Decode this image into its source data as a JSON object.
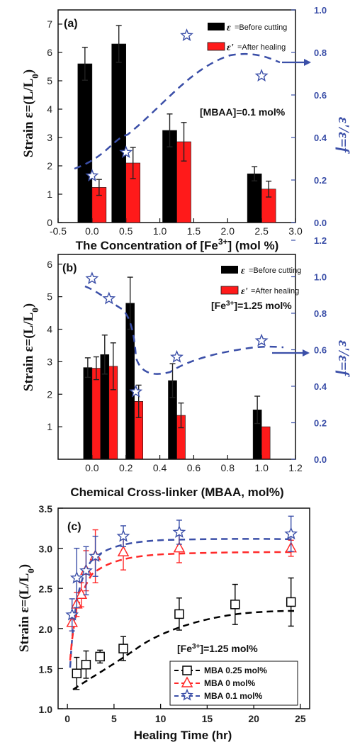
{
  "chart_data": [
    {
      "panel": "(a)",
      "type": "bar",
      "x": [
        0.0,
        0.5,
        1.25,
        2.5
      ],
      "series": [
        {
          "name": "=Before cutting",
          "symbol": "ε",
          "color": "#000000",
          "values": [
            5.6,
            6.3,
            3.25,
            1.72
          ],
          "errors": [
            0.58,
            0.65,
            0.58,
            0.25
          ]
        },
        {
          "name": "=After healing",
          "symbol": "ε'",
          "color": "#ff1a1a",
          "values": [
            1.24,
            2.1,
            2.85,
            1.18
          ],
          "errors": [
            0.28,
            0.55,
            0.68,
            0.28
          ]
        }
      ],
      "ratio_series": {
        "symbol": "ε'/ε=f",
        "color": "#3b4fa8",
        "x": [
          0.0,
          0.5,
          1.25,
          2.5
        ],
        "values": [
          0.22,
          0.33,
          0.88,
          0.69
        ]
      },
      "xlabel": "The Concentration of [Fe3+] (mol %)",
      "xlabel_main": "The Concentration of [Fe",
      "xlabel_sup": "3+",
      "xlabel_end": "] (mol %)",
      "ylabel": "Strain ε=(L/L0)",
      "ylabel_main": "Strain ε=(L/L",
      "ylabel_sub": "0",
      "ylabel_end": ")",
      "ylabel_right": "ε'/ε=f",
      "xlim": [
        -0.5,
        3.0
      ],
      "ylim": [
        0,
        7.5
      ],
      "y2lim": [
        0,
        1.0
      ],
      "xticks": [
        "-0.5",
        "0.0",
        "0.5",
        "1.0",
        "1.5",
        "2.0",
        "2.5",
        "3.0"
      ],
      "yticks": [
        "0",
        "1",
        "2",
        "3",
        "4",
        "5",
        "6",
        "7"
      ],
      "y2ticks": [
        "0.0",
        "0.2",
        "0.4",
        "0.6",
        "0.8",
        "1.0"
      ],
      "annotation": "[MBAA]=0.1 mol%",
      "legend": "top-right",
      "grid": false
    },
    {
      "panel": "(b)",
      "type": "bar",
      "x": [
        0.0,
        0.1,
        0.25,
        0.5,
        1.0
      ],
      "series": [
        {
          "name": "=Before cutting",
          "symbol": "ε",
          "color": "#000000",
          "values": [
            2.82,
            3.22,
            4.8,
            2.42,
            1.52
          ],
          "errors": [
            0.3,
            0.6,
            0.8,
            0.52,
            0.42
          ]
        },
        {
          "name": "=After healing",
          "symbol": "ε'",
          "color": "#ff1a1a",
          "values": [
            2.8,
            2.86,
            1.78,
            1.35,
            1.0
          ],
          "errors": [
            0.35,
            0.72,
            0.5,
            0.38,
            0.0
          ]
        }
      ],
      "ratio_series": {
        "symbol": "ε'/ε=f",
        "color": "#3b4fa8",
        "x": [
          0.0,
          0.1,
          0.25,
          0.5,
          1.0
        ],
        "values": [
          0.99,
          0.88,
          0.37,
          0.56,
          0.65
        ]
      },
      "xlabel": "Chemical Cross-linker (MBAA, mol%)",
      "ylabel": "Strain ε=(L/L0)",
      "ylabel_main": "Strain ε=(L/L",
      "ylabel_sub": "0",
      "ylabel_end": ")",
      "ylabel_right": "ε'/ε=f",
      "xlim": [
        -0.2,
        1.2
      ],
      "ylim": [
        0,
        6.3
      ],
      "y2lim": [
        0,
        1.2
      ],
      "xticks": [
        "0.0",
        "0.2",
        "0.4",
        "0.6",
        "0.8",
        "1.0",
        "1.2"
      ],
      "yticks": [
        "1",
        "2",
        "3",
        "4",
        "5",
        "6"
      ],
      "y2ticks": [
        "0.0",
        "0.2",
        "0.4",
        "0.6",
        "0.8",
        "1.0",
        "1.2"
      ],
      "annotation": "[Fe3+]=1.25 mol%",
      "annotation_main": "[Fe",
      "annotation_sup": "3+",
      "annotation_end": "]=1.25 mol%",
      "legend": "top-right",
      "grid": false
    },
    {
      "panel": "(c)",
      "type": "scatter",
      "series": [
        {
          "name": "MBA 0.25 mol%",
          "marker": "square",
          "color": "#000000",
          "x": [
            1,
            2,
            3.5,
            6,
            12,
            18,
            24
          ],
          "values": [
            1.44,
            1.55,
            1.65,
            1.75,
            2.18,
            2.3,
            2.33
          ],
          "errors": [
            0.2,
            0.17,
            0.08,
            0.15,
            0.2,
            0.25,
            0.3
          ]
        },
        {
          "name": "MBA 0 mol%",
          "marker": "triangle",
          "color": "#ff2a2a",
          "x": [
            0.5,
            1,
            1.5,
            2,
            3,
            6,
            12,
            24
          ],
          "values": [
            2.07,
            2.3,
            2.42,
            2.72,
            2.9,
            2.95,
            3.0,
            3.0
          ],
          "errors": [
            0.1,
            0.15,
            0.15,
            0.25,
            0.33,
            0.22,
            0.18,
            0.1
          ]
        },
        {
          "name": "MBA 0.1 mol%",
          "marker": "star",
          "color": "#3b4fa8",
          "x": [
            0.5,
            1,
            2,
            3,
            6,
            12,
            24
          ],
          "values": [
            2.17,
            2.63,
            2.72,
            2.9,
            3.15,
            3.2,
            3.18
          ],
          "errors": [
            0.2,
            0.37,
            0.3,
            0.25,
            0.13,
            0.15,
            0.22
          ]
        }
      ],
      "xlabel": "Healing Time (hr)",
      "ylabel": "Strain ε=(L/L0)",
      "ylabel_main": "Strain ε=(L/L",
      "ylabel_sub": "0",
      "ylabel_end": ")",
      "xlim": [
        -1,
        26
      ],
      "ylim": [
        1.0,
        3.5
      ],
      "xticks": [
        "0",
        "5",
        "10",
        "15",
        "20",
        "25"
      ],
      "yticks": [
        "1.0",
        "1.5",
        "2.0",
        "2.5",
        "3.0",
        "3.5"
      ],
      "annotation": "[Fe3+]=1.25 mol%",
      "annotation_main": "[Fe",
      "annotation_sup": "3+",
      "annotation_end": "]=1.25 mol%",
      "legend": "bottom-right",
      "grid": false
    }
  ]
}
